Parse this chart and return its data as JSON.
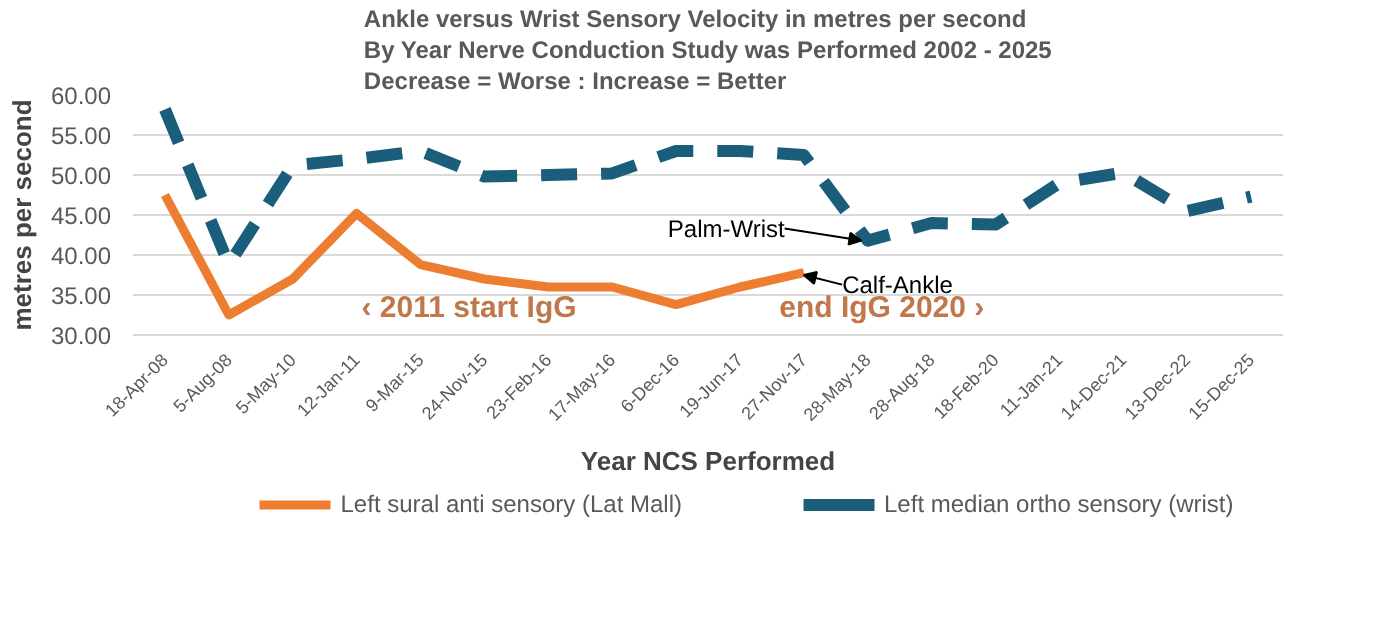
{
  "chart_data": {
    "type": "line",
    "title": "Ankle versus Wrist Sensory Velocity in metres per second\nBy Year Nerve Conduction Study was Performed 2002 - 2025\nDecrease = Worse : Increase = Better",
    "xlabel": "Year NCS Performed",
    "ylabel": "metres per second",
    "categories": [
      "18-Apr-08",
      "5-Aug-08",
      "5-May-10",
      "12-Jan-11",
      "9-Mar-15",
      "24-Nov-15",
      "23-Feb-16",
      "17-May-16",
      "6-Dec-16",
      "19-Jun-17",
      "27-Nov-17",
      "28-May-18",
      "28-Aug-18",
      "18-Feb-20",
      "11-Jan-21",
      "14-Dec-21",
      "13-Dec-22",
      "15-Dec-25"
    ],
    "series": [
      {
        "name": "Left sural anti sensory (Lat Mall)",
        "color": "#ed7d31",
        "line_style": "solid",
        "values": [
          47.5,
          32.5,
          37,
          45.2,
          38.8,
          37,
          36,
          36,
          33.8,
          36,
          37.8,
          null,
          null,
          null,
          null,
          null,
          null,
          null
        ]
      },
      {
        "name": "Left median ortho sensory (wrist)",
        "color": "#1b5e7b",
        "line_style": "dashed",
        "values": [
          58.2,
          38.8,
          51.2,
          52,
          53,
          49.8,
          50,
          50.2,
          53,
          53,
          52.5,
          41.8,
          44,
          43.8,
          49,
          50.3,
          45.5,
          47.3
        ]
      }
    ],
    "ylim": [
      30,
      60
    ],
    "yticks": [
      {
        "value": 30,
        "label": "30.00"
      },
      {
        "value": 35,
        "label": "35.00"
      },
      {
        "value": 40,
        "label": "40.00"
      },
      {
        "value": 45,
        "label": "45.00"
      },
      {
        "value": 50,
        "label": "50.00"
      },
      {
        "value": 55,
        "label": "55.00"
      },
      {
        "value": 60,
        "label": "60.00"
      }
    ],
    "grid": "y",
    "legend": "bottom",
    "marker": "none",
    "annotations": [
      "‹ 2011 start IgG",
      "end IgG 2020 ›",
      {
        "text": "Palm-Wrist",
        "x": "28-May-18",
        "y": 41.8
      },
      {
        "text": "Calf-Ankle",
        "x": "27-Nov-17",
        "y": 37.8
      }
    ]
  }
}
